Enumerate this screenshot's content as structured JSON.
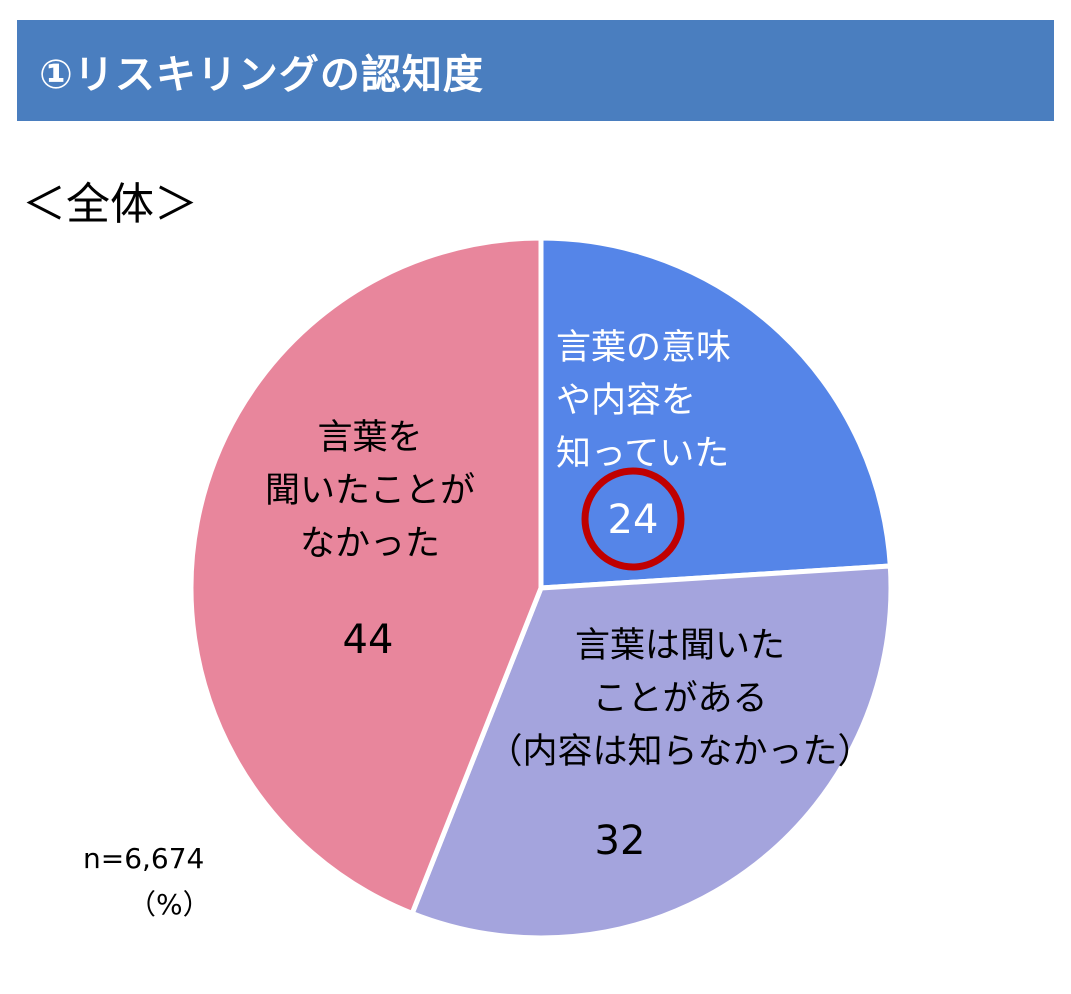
{
  "header": {
    "title": "①リスキリングの認知度"
  },
  "subtitle": "＜全体＞",
  "chart_data": {
    "type": "pie",
    "title": "",
    "unit": "%",
    "sample_size": "n=6,674",
    "unit_label": "（%）",
    "slices": [
      {
        "label_lines": [
          "言葉の意味",
          "や内容を",
          "知っていた"
        ],
        "value": 24,
        "value_text": "24",
        "color": "#5585e8",
        "text_color": "#ffffff",
        "highlighted": true,
        "highlight_color": "#c00000"
      },
      {
        "label_lines": [
          "言葉は聞いた",
          "ことがある",
          "（内容は知らなかった）"
        ],
        "value": 32,
        "value_text": "32",
        "color": "#a4a4dd",
        "text_color": "#000000",
        "highlighted": false
      },
      {
        "label_lines": [
          "言葉を",
          "聞いたことが",
          "なかった"
        ],
        "value": 44,
        "value_text": "44",
        "color": "#e8869c",
        "text_color": "#000000",
        "highlighted": false
      }
    ]
  }
}
